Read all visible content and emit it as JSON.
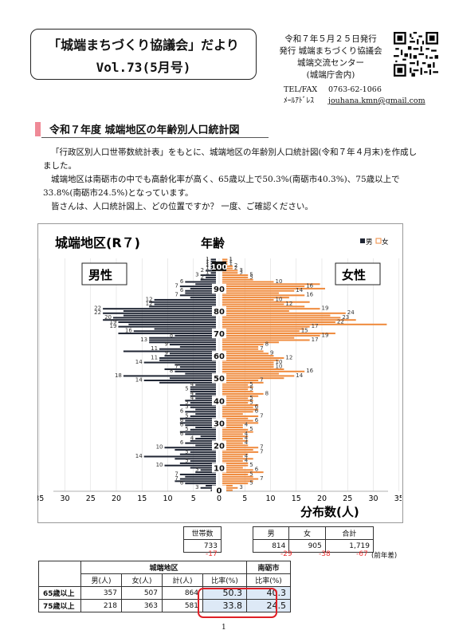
{
  "header": {
    "title_line1": "「城端まちづくり協議会」だより",
    "title_line2": "Vol.73(5月号)",
    "publish_date": "令和７年５月２５日発行",
    "publisher": "発行 城端まちづくり協議会",
    "center": "城端交流センター",
    "center_note": "(城端庁舎内)",
    "tel_label": "TEL/FAX",
    "tel": "0763-62-1066",
    "mail_label": "ﾒｰﾙｱﾄﾞﾚｽ",
    "mail": "jouhana.kmn@gmail.com"
  },
  "section": {
    "heading": "令和７年度 城端地区の年齢別人口統計図"
  },
  "body": {
    "p1": "「行政区別人口世帯数統計表」をもとに、城端地区の年齢別人口統計図(令和７年４月末)を作成しました。",
    "p2": "城端地区は南砺市の中でも高齢化率が高く、65歳以上で50.3%(南砺市40.3%)、75歳以上で33.8%(南砺市24.5%)となっています。",
    "p3": "皆さんは、人口統計図上、どの位置ですか？ 一度、ご確認ください。"
  },
  "chart_data": {
    "type": "bar",
    "title": "城端地区(R７)",
    "center_label": "年齢",
    "left_label": "男性",
    "right_label": "女性",
    "xlabel": "分布数(人)",
    "legend": [
      "男",
      "女"
    ],
    "legend_placement": "top-right",
    "colors": {
      "male": "#1f2533",
      "female": "#ef8a3c"
    },
    "xlim": [
      0,
      35
    ],
    "x_ticks": [
      "35",
      "30",
      "25",
      "20",
      "15",
      "10",
      "5",
      "0",
      "5",
      "10",
      "15",
      "20",
      "25",
      "30",
      "35"
    ],
    "age_labels": [
      "0",
      "10",
      "20",
      "30",
      "40",
      "50",
      "60",
      "70",
      "80",
      "90",
      "100"
    ],
    "ages": [
      0,
      1,
      2,
      3,
      4,
      5,
      6,
      7,
      8,
      9,
      10,
      11,
      12,
      13,
      14,
      15,
      16,
      17,
      18,
      19,
      20,
      21,
      22,
      23,
      24,
      25,
      26,
      27,
      28,
      29,
      30,
      31,
      32,
      33,
      34,
      35,
      36,
      37,
      38,
      39,
      40,
      41,
      42,
      43,
      44,
      45,
      46,
      47,
      48,
      49,
      50,
      51,
      52,
      53,
      54,
      55,
      56,
      57,
      58,
      59,
      60,
      61,
      62,
      63,
      64,
      65,
      66,
      67,
      68,
      69,
      70,
      71,
      72,
      73,
      74,
      75,
      76,
      77,
      78,
      79,
      80,
      81,
      82,
      83,
      84,
      85,
      86,
      87,
      88,
      89,
      90,
      91,
      92,
      93,
      94,
      95,
      96,
      97,
      98,
      99,
      100,
      101,
      102,
      103
    ],
    "series": [
      {
        "name": "男",
        "values": [
          1,
          3,
          2,
          6,
          8,
          7,
          6,
          7,
          4,
          3,
          5,
          10,
          7,
          5,
          8,
          14,
          7,
          5,
          8,
          10,
          4,
          6,
          5,
          4,
          3,
          6,
          7,
          5,
          4,
          6,
          7,
          6,
          7,
          5,
          4,
          6,
          4,
          5,
          7,
          5,
          6,
          4,
          5,
          4,
          5,
          5,
          5,
          4,
          11,
          14,
          9,
          18,
          6,
          8,
          10,
          7,
          8,
          14,
          11,
          11,
          10,
          9,
          18,
          11,
          7,
          9,
          13,
          13,
          13,
          8,
          19,
          16,
          12,
          19,
          17,
          19,
          22,
          20,
          18,
          22,
          18,
          22,
          13,
          12,
          13,
          12,
          5,
          7,
          6,
          6,
          5,
          7,
          4,
          6,
          3,
          2,
          3,
          1,
          2,
          1,
          1,
          1,
          1,
          1
        ]
      },
      {
        "name": "女",
        "values": [
          2,
          3,
          2,
          5,
          6,
          7,
          6,
          5,
          8,
          6,
          4,
          5,
          5,
          4,
          6,
          4,
          5,
          7,
          6,
          7,
          5,
          4,
          5,
          4,
          5,
          4,
          6,
          5,
          4,
          4,
          7,
          6,
          5,
          7,
          4,
          6,
          7,
          6,
          7,
          5,
          6,
          5,
          7,
          8,
          6,
          5,
          6,
          5,
          8,
          7,
          12,
          14,
          11,
          16,
          12,
          10,
          10,
          10,
          11,
          12,
          10,
          9,
          8,
          7,
          7,
          8,
          11,
          17,
          14,
          19,
          22,
          15,
          16,
          17,
          32,
          22,
          26,
          23,
          21,
          24,
          13,
          19,
          16,
          12,
          17,
          10,
          13,
          16,
          11,
          14,
          20,
          16,
          19,
          10,
          6,
          5,
          5,
          3,
          3,
          2,
          2,
          1,
          1,
          1
        ]
      }
    ]
  },
  "households": {
    "header": "世帯数",
    "value": "733",
    "diff": "-17"
  },
  "population": {
    "headers": [
      "男",
      "女",
      "合計"
    ],
    "values": [
      "814",
      "905",
      "1,719"
    ],
    "diffs": [
      "-29",
      "-38",
      "-67"
    ],
    "diff_note": "(前年差)"
  },
  "ratio_table": {
    "group_header": "城端地区",
    "city_header": "南砺市",
    "columns": [
      "男(人)",
      "女(人)",
      "計(人)",
      "比率(%)",
      "比率(%)"
    ],
    "rows": [
      {
        "label": "65歳以上",
        "cells": [
          "357",
          "507",
          "864",
          "50.3",
          "40.3"
        ]
      },
      {
        "label": "75歳以上",
        "cells": [
          "218",
          "363",
          "581",
          "33.8",
          "24.5"
        ]
      }
    ],
    "highlight_color": "#e01f26"
  },
  "page_number": "1"
}
